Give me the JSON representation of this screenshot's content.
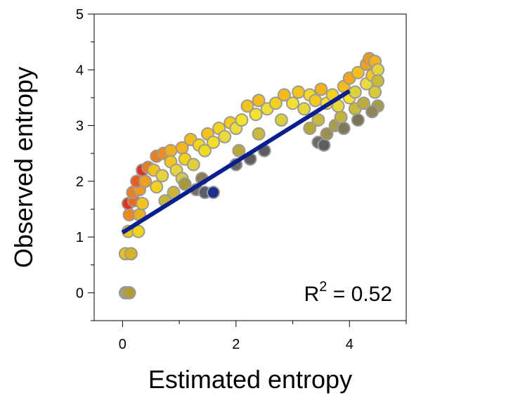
{
  "chart_data": {
    "type": "scatter",
    "xlabel": "Estimated entropy",
    "ylabel": "Observed entropy",
    "xlim": [
      -0.5,
      5
    ],
    "ylim": [
      -0.5,
      5
    ],
    "x_ticks": [
      "0",
      "2",
      "4"
    ],
    "y_ticks": [
      "0",
      "1",
      "2",
      "3",
      "4",
      "5"
    ],
    "annotation": {
      "prefix": "R",
      "superscript": "2",
      "suffix": " = 0.52"
    },
    "fit_line": {
      "x": [
        0.0,
        4.0
      ],
      "y": [
        1.08,
        3.62
      ],
      "color": "#0a1f8f"
    },
    "marker_edge_color": "#9a9a9a",
    "grid": false,
    "points": [
      {
        "x": 0.05,
        "y": 0.0,
        "c": "#b5a233"
      },
      {
        "x": 0.08,
        "y": 0.0,
        "c": "#b9a634"
      },
      {
        "x": 0.12,
        "y": 0.0,
        "c": "#b19d33"
      },
      {
        "x": 0.05,
        "y": 0.7,
        "c": "#e8c21a"
      },
      {
        "x": 0.15,
        "y": 0.7,
        "c": "#d9b228"
      },
      {
        "x": 0.1,
        "y": 1.1,
        "c": "#ecc51a"
      },
      {
        "x": 0.28,
        "y": 1.1,
        "c": "#f1d51a"
      },
      {
        "x": 0.12,
        "y": 1.4,
        "c": "#ef8a1c"
      },
      {
        "x": 0.3,
        "y": 1.4,
        "c": "#e8b21a"
      },
      {
        "x": 0.1,
        "y": 1.6,
        "c": "#e2321e"
      },
      {
        "x": 0.2,
        "y": 1.65,
        "c": "#ec6a1c"
      },
      {
        "x": 0.35,
        "y": 1.6,
        "c": "#f4c31a"
      },
      {
        "x": 0.18,
        "y": 1.8,
        "c": "#f07e1c"
      },
      {
        "x": 0.3,
        "y": 1.85,
        "c": "#ef9a1c"
      },
      {
        "x": 0.25,
        "y": 2.0,
        "c": "#ec5a1c"
      },
      {
        "x": 0.4,
        "y": 2.0,
        "c": "#f0a01c"
      },
      {
        "x": 0.35,
        "y": 2.2,
        "c": "#e2321e"
      },
      {
        "x": 0.45,
        "y": 2.25,
        "c": "#ec7a1c"
      },
      {
        "x": 0.55,
        "y": 2.2,
        "c": "#f3c01a"
      },
      {
        "x": 0.6,
        "y": 1.9,
        "c": "#f5d21a"
      },
      {
        "x": 0.7,
        "y": 2.1,
        "c": "#e6d23a"
      },
      {
        "x": 0.6,
        "y": 2.45,
        "c": "#ef7e1c"
      },
      {
        "x": 0.72,
        "y": 2.5,
        "c": "#ef8a1c"
      },
      {
        "x": 0.85,
        "y": 2.55,
        "c": "#f3b01a"
      },
      {
        "x": 0.85,
        "y": 2.35,
        "c": "#f3c51a"
      },
      {
        "x": 0.95,
        "y": 2.2,
        "c": "#e8d23a"
      },
      {
        "x": 1.05,
        "y": 2.6,
        "c": "#f3b51a"
      },
      {
        "x": 1.1,
        "y": 2.4,
        "c": "#f3d21a"
      },
      {
        "x": 1.25,
        "y": 2.3,
        "c": "#ddcf3a"
      },
      {
        "x": 1.05,
        "y": 2.05,
        "c": "#d7c84a"
      },
      {
        "x": 1.1,
        "y": 1.95,
        "c": "#a8983a"
      },
      {
        "x": 0.75,
        "y": 1.65,
        "c": "#c7b43a"
      },
      {
        "x": 0.9,
        "y": 1.8,
        "c": "#c9b33a"
      },
      {
        "x": 1.3,
        "y": 1.85,
        "c": "#7a7060"
      },
      {
        "x": 1.4,
        "y": 2.05,
        "c": "#8a7f58"
      },
      {
        "x": 1.45,
        "y": 1.8,
        "c": "#5a5c6a"
      },
      {
        "x": 1.6,
        "y": 1.8,
        "c": "#1e2f8a"
      },
      {
        "x": 1.2,
        "y": 2.75,
        "c": "#f4bc1a"
      },
      {
        "x": 1.35,
        "y": 2.65,
        "c": "#f4d41a"
      },
      {
        "x": 1.45,
        "y": 2.55,
        "c": "#f1dc22"
      },
      {
        "x": 1.5,
        "y": 2.85,
        "c": "#f3c31a"
      },
      {
        "x": 1.6,
        "y": 2.7,
        "c": "#f4df22"
      },
      {
        "x": 1.7,
        "y": 2.95,
        "c": "#f4d41a"
      },
      {
        "x": 1.8,
        "y": 2.8,
        "c": "#e9d93a"
      },
      {
        "x": 1.9,
        "y": 3.05,
        "c": "#f4cc1a"
      },
      {
        "x": 2.0,
        "y": 2.95,
        "c": "#eadc3a"
      },
      {
        "x": 2.1,
        "y": 3.1,
        "c": "#f5e22a"
      },
      {
        "x": 2.05,
        "y": 2.55,
        "c": "#b8a83a"
      },
      {
        "x": 2.0,
        "y": 2.3,
        "c": "#6b6660"
      },
      {
        "x": 2.25,
        "y": 2.4,
        "c": "#625f60"
      },
      {
        "x": 2.4,
        "y": 2.85,
        "c": "#c9b93a"
      },
      {
        "x": 2.5,
        "y": 2.55,
        "c": "#5f5d62"
      },
      {
        "x": 2.2,
        "y": 3.35,
        "c": "#f4c41a"
      },
      {
        "x": 2.35,
        "y": 3.2,
        "c": "#f5e22a"
      },
      {
        "x": 2.4,
        "y": 3.45,
        "c": "#f3bc1a"
      },
      {
        "x": 2.55,
        "y": 3.3,
        "c": "#eede36"
      },
      {
        "x": 2.7,
        "y": 3.4,
        "c": "#f4d21a"
      },
      {
        "x": 2.8,
        "y": 3.1,
        "c": "#dbd03a"
      },
      {
        "x": 2.85,
        "y": 3.55,
        "c": "#f4bc1a"
      },
      {
        "x": 3.0,
        "y": 3.4,
        "c": "#f5e02a"
      },
      {
        "x": 3.1,
        "y": 3.6,
        "c": "#f3c41a"
      },
      {
        "x": 3.2,
        "y": 3.3,
        "c": "#e5d83a"
      },
      {
        "x": 3.3,
        "y": 3.55,
        "c": "#f5dc22"
      },
      {
        "x": 3.4,
        "y": 3.45,
        "c": "#f4ca1a"
      },
      {
        "x": 3.5,
        "y": 3.65,
        "c": "#f3b41a"
      },
      {
        "x": 3.6,
        "y": 3.4,
        "c": "#f5e22a"
      },
      {
        "x": 3.45,
        "y": 3.1,
        "c": "#c9b93a"
      },
      {
        "x": 3.3,
        "y": 2.95,
        "c": "#b7a83a"
      },
      {
        "x": 3.45,
        "y": 2.7,
        "c": "#6c6a62"
      },
      {
        "x": 3.55,
        "y": 2.65,
        "c": "#5f5d62"
      },
      {
        "x": 3.6,
        "y": 2.85,
        "c": "#9c9050"
      },
      {
        "x": 3.75,
        "y": 3.0,
        "c": "#a89d48"
      },
      {
        "x": 3.85,
        "y": 3.15,
        "c": "#c2b43a"
      },
      {
        "x": 3.9,
        "y": 2.95,
        "c": "#7e7758"
      },
      {
        "x": 3.7,
        "y": 3.55,
        "c": "#f4d21a"
      },
      {
        "x": 3.8,
        "y": 3.35,
        "c": "#e6d83a"
      },
      {
        "x": 3.9,
        "y": 3.7,
        "c": "#f4bc1a"
      },
      {
        "x": 4.0,
        "y": 3.5,
        "c": "#f5e02a"
      },
      {
        "x": 4.0,
        "y": 3.85,
        "c": "#f1a81a"
      },
      {
        "x": 4.1,
        "y": 3.6,
        "c": "#dcd23a"
      },
      {
        "x": 4.15,
        "y": 3.95,
        "c": "#f3c01a"
      },
      {
        "x": 4.1,
        "y": 3.3,
        "c": "#c8bb3a"
      },
      {
        "x": 4.15,
        "y": 3.1,
        "c": "#7a7358"
      },
      {
        "x": 4.25,
        "y": 3.4,
        "c": "#b9ad40"
      },
      {
        "x": 4.3,
        "y": 3.75,
        "c": "#e9db3a"
      },
      {
        "x": 4.3,
        "y": 4.1,
        "c": "#f0a01c"
      },
      {
        "x": 4.35,
        "y": 4.2,
        "c": "#ee9a1c"
      },
      {
        "x": 4.4,
        "y": 3.9,
        "c": "#f3c81a"
      },
      {
        "x": 4.45,
        "y": 4.15,
        "c": "#f1b41a"
      },
      {
        "x": 4.45,
        "y": 3.6,
        "c": "#d7cb3a"
      },
      {
        "x": 4.5,
        "y": 4.0,
        "c": "#e5d43a"
      },
      {
        "x": 4.5,
        "y": 3.35,
        "c": "#a59c48"
      },
      {
        "x": 4.4,
        "y": 3.25,
        "c": "#8e865a"
      },
      {
        "x": 4.5,
        "y": 3.8,
        "c": "#c8bb3a"
      }
    ]
  }
}
